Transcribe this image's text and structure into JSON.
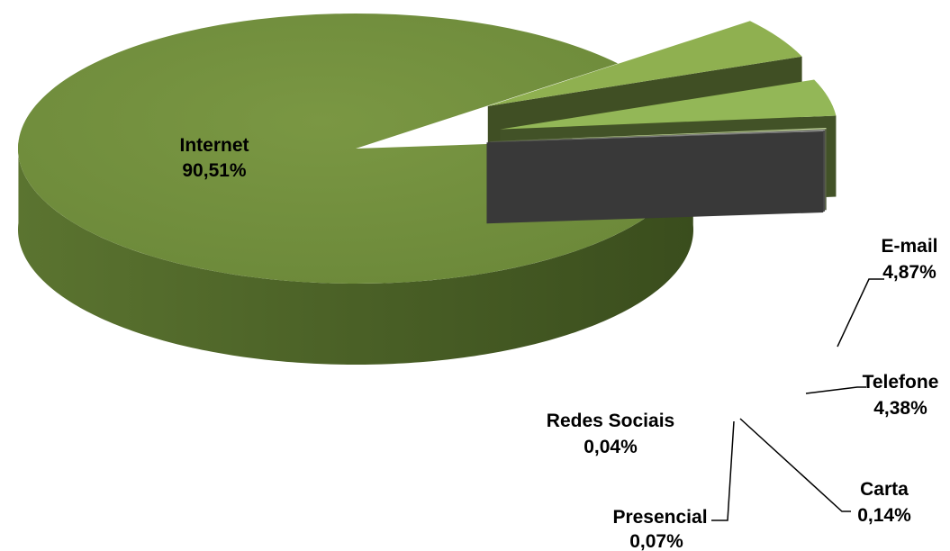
{
  "chart_data": {
    "type": "pie",
    "style": "3d-exploded",
    "title": "",
    "slices": [
      {
        "category": "Internet",
        "value": 90.51,
        "value_label": "90,51%",
        "color": "#6e8b3d"
      },
      {
        "category": "E-mail",
        "value": 4.87,
        "value_label": "4,87%",
        "color": "#8fb050"
      },
      {
        "category": "Telefone",
        "value": 4.38,
        "value_label": "4,38%",
        "color": "#93b757"
      },
      {
        "category": "Carta",
        "value": 0.14,
        "value_label": "0,14%",
        "color": "#c3d69b"
      },
      {
        "category": "Presencial",
        "value": 0.07,
        "value_label": "0,07%",
        "color": "#a6a6a6"
      },
      {
        "category": "Redes Sociais",
        "value": 0.04,
        "value_label": "0,04%",
        "color": "#7f7f7f"
      }
    ],
    "legend": "none"
  }
}
